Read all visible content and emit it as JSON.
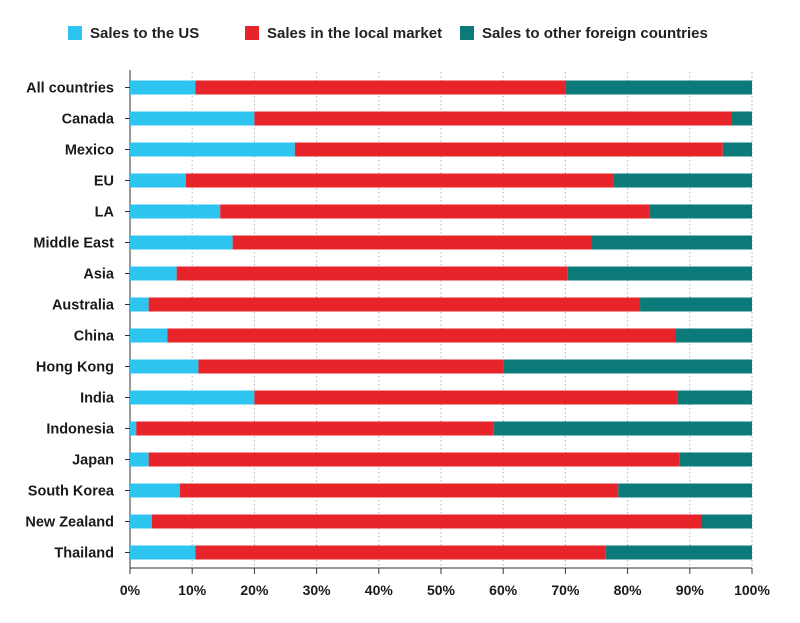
{
  "chart_data": {
    "type": "bar",
    "orientation": "horizontal",
    "stacked": true,
    "title": "",
    "xlabel": "",
    "ylabel": "",
    "xlim": [
      0,
      100
    ],
    "legend_position": "top",
    "categories": [
      "All countries",
      "Canada",
      "Mexico",
      "EU",
      "LA",
      "Middle East",
      "Asia",
      "Australia",
      "China",
      "Hong Kong",
      "India",
      "Indonesia",
      "Japan",
      "South Korea",
      "New Zealand",
      "Thailand"
    ],
    "series": [
      {
        "name": "Sales to the US",
        "color": "#2ec4f0",
        "values": [
          10.5,
          20,
          26.5,
          9,
          14.5,
          16.5,
          7.5,
          3,
          6,
          11,
          20,
          1,
          3,
          8,
          3.5,
          10.5
        ]
      },
      {
        "name": "Sales in the local market",
        "color": "#e8242b",
        "values": [
          59.5,
          76.7,
          68.8,
          68.8,
          69,
          57.7,
          62.8,
          79,
          81.7,
          49,
          68,
          57.5,
          85.3,
          70.5,
          88.3,
          66
        ]
      },
      {
        "name": "Sales to other foreign countries",
        "color": "#0b7a78",
        "values": [
          30,
          3.3,
          4.7,
          22.2,
          16.5,
          25.8,
          29.7,
          18,
          12.3,
          40,
          12,
          41.5,
          11.7,
          21.5,
          8.2,
          23.5
        ]
      }
    ],
    "x_ticks": [
      "0%",
      "10%",
      "20%",
      "30%",
      "40%",
      "50%",
      "60%",
      "70%",
      "80%",
      "90%",
      "100%"
    ]
  }
}
